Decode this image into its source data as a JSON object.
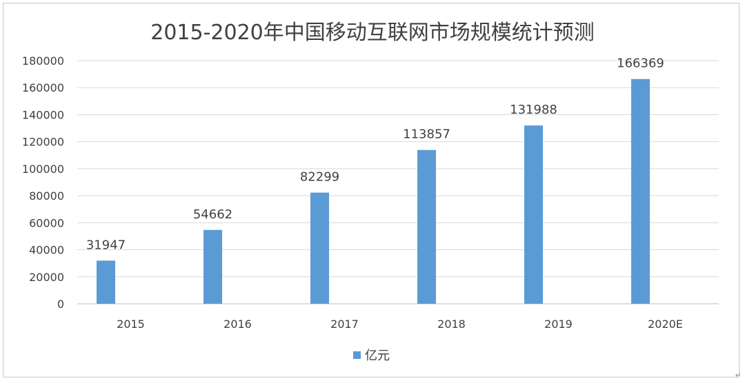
{
  "chart_data": {
    "type": "bar",
    "title": "2015-2020年中国移动互联网市场规模统计预测",
    "categories": [
      "2015",
      "2016",
      "2017",
      "2018",
      "2019",
      "2020E"
    ],
    "series": [
      {
        "name": "亿元",
        "values": [
          31947,
          54662,
          82299,
          113857,
          131988,
          166369
        ]
      }
    ],
    "yticks": [
      0,
      20000,
      40000,
      60000,
      80000,
      100000,
      120000,
      140000,
      160000,
      180000
    ],
    "ylim": [
      0,
      180000
    ],
    "grid": true,
    "legend_position": "bottom",
    "data_labels": true,
    "bar_color": "#5b9bd5",
    "gridline_color": "#d9d9d9",
    "text_color": "#404040"
  },
  "corner_mark": "↵"
}
